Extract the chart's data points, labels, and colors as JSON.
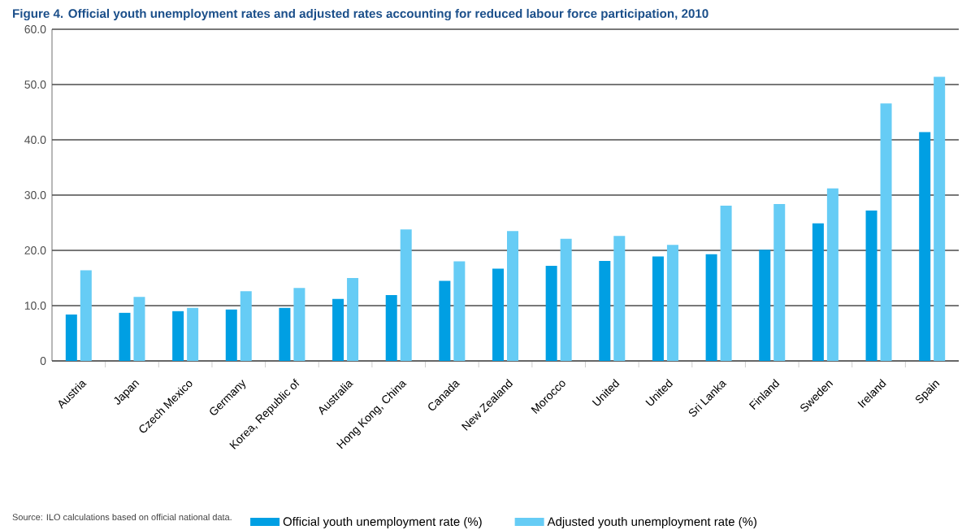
{
  "chart_data": {
    "type": "bar",
    "title": "Figure 4.   Official youth unemployment rates and adjusted rates accounting for reduced labour force participation, 2010",
    "categories": [
      "Austria",
      "Japan",
      "Czech Mexico",
      "Germany",
      "Korea, Republic of",
      "Australia",
      "Hong Kong, China",
      "Canada",
      "New Zealand",
      "Morocco",
      "United",
      "United",
      "Sri Lanka",
      "Finland",
      "Sweden",
      "Ireland",
      "Spain"
    ],
    "series": [
      {
        "name": "Official youth unemployment rate (%)",
        "color": "#009fe3",
        "values": [
          8.4,
          8.7,
          9.0,
          9.3,
          9.6,
          11.2,
          11.9,
          14.5,
          16.7,
          17.2,
          18.1,
          18.9,
          19.3,
          20.1,
          24.9,
          27.2,
          41.4
        ]
      },
      {
        "name": "Adjusted youth unemployment rate (%)",
        "color": "#66ccf5",
        "values": [
          16.4,
          11.6,
          9.6,
          12.6,
          13.2,
          15.0,
          23.8,
          18.0,
          23.5,
          22.1,
          22.6,
          21.0,
          28.1,
          28.4,
          31.2,
          46.6,
          51.4
        ]
      }
    ],
    "ylim": [
      0,
      60
    ],
    "yticks": [
      {
        "value": 0,
        "label": "0"
      },
      {
        "value": 10,
        "label": "10.0"
      },
      {
        "value": 20,
        "label": "20.0"
      },
      {
        "value": 30,
        "label": "30.0"
      },
      {
        "value": 40,
        "label": "40.0"
      },
      {
        "value": 50,
        "label": "50.0"
      },
      {
        "value": 60,
        "label": "60.0"
      }
    ],
    "grid": "y",
    "legend": "bottom",
    "annotations": [
      "Source: ILO calculations based on official national data."
    ]
  }
}
